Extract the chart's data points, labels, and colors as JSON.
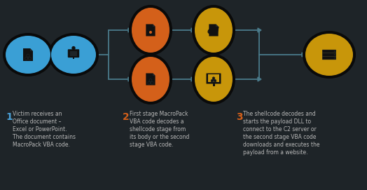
{
  "bg_color": "#1e2428",
  "dark_bg": "#252a2e",
  "node_outline_color": "#111111",
  "arrow_color": "#4a7a8a",
  "blue_color": "#3a9fd5",
  "orange_color": "#d4601a",
  "gold_color": "#c8960a",
  "text_color": "#b8b8b8",
  "number_color_1": "#4a9fd5",
  "number_color_2": "#d4601a",
  "number_color_3": "#d4601a",
  "step1_num": "1",
  "step2_num": "2",
  "step3_num": "3",
  "step1_lines": [
    "Victim receives an",
    "Office document –",
    "Excel or PowerPoint.",
    "The document contains",
    "MacroPack VBA code."
  ],
  "step2_lines": [
    "First stage MacroPack",
    "VBA code decodes a",
    "shellcode stage from",
    "its body or the second",
    "stage VBA code."
  ],
  "step3_lines": [
    "The shellcode decodes and",
    "starts the payload DLL to",
    "connect to the C2 server or",
    "the second stage VBA code",
    "downloads and executes the",
    "payload from a website."
  ]
}
